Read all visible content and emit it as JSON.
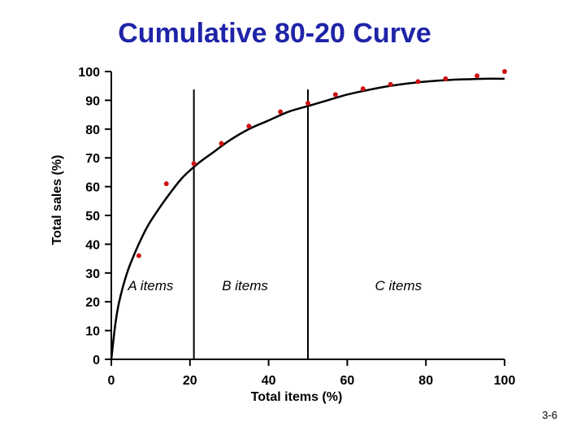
{
  "title": "Cumulative 80-20 Curve",
  "slide_number": "3-6",
  "colors": {
    "title": "#1f24a8",
    "points": "#cc1111",
    "curve": "#000000"
  },
  "chart_data": {
    "type": "scatter",
    "title": "Cumulative 80-20 Curve",
    "xlabel": "Total items (%)",
    "ylabel": "Total sales (%)",
    "xlim": [
      0,
      100
    ],
    "ylim": [
      0,
      100
    ],
    "xticks": [
      0,
      20,
      40,
      60,
      80,
      100
    ],
    "yticks": [
      0,
      10,
      20,
      30,
      40,
      50,
      60,
      70,
      80,
      90,
      100
    ],
    "x": [
      7,
      14,
      21,
      28,
      35,
      43,
      50,
      57,
      64,
      71,
      78,
      85,
      93,
      100
    ],
    "y": [
      36,
      61,
      68,
      75,
      81,
      86,
      89,
      92,
      94,
      95.5,
      96.5,
      97.5,
      98.5,
      100
    ],
    "curve": {
      "x": [
        0,
        1,
        2,
        4,
        6,
        8,
        10,
        14,
        18,
        22,
        26,
        30,
        35,
        40,
        45,
        50,
        55,
        60,
        65,
        70,
        75,
        80,
        85,
        90,
        95,
        100
      ],
      "y": [
        0,
        12,
        20,
        30,
        37,
        43,
        48,
        56,
        63,
        68,
        72,
        76,
        80,
        83,
        86,
        88,
        90,
        92,
        93.5,
        94.8,
        95.8,
        96.5,
        97,
        97.3,
        97.5,
        97.5
      ]
    },
    "dividers_x": [
      21,
      50
    ],
    "regions": [
      {
        "label": "A items",
        "x": 10,
        "y": 24
      },
      {
        "label": "B items",
        "x": 34,
        "y": 24
      },
      {
        "label": "C items",
        "x": 73,
        "y": 24
      }
    ],
    "grid": false,
    "legend": "none"
  }
}
